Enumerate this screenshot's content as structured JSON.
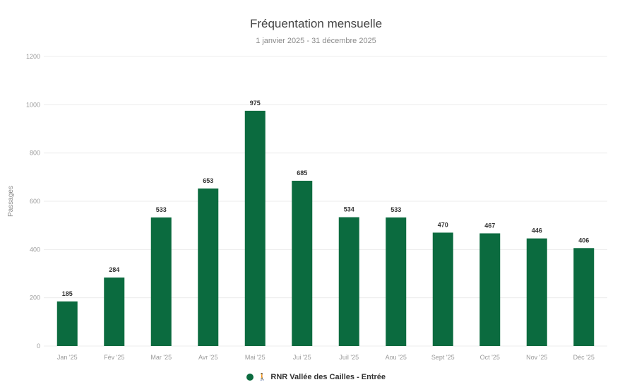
{
  "chart_data": {
    "type": "bar",
    "title": "Fréquentation mensuelle",
    "subtitle": "1 janvier 2025 - 31 décembre 2025",
    "ylabel": "Passages",
    "xlabel": "",
    "ylim": [
      0,
      1200
    ],
    "yticks": [
      "0",
      "200",
      "400",
      "600",
      "800",
      "1000",
      "1200"
    ],
    "categories": [
      "Jan '25",
      "Fév '25",
      "Mar '25",
      "Avr '25",
      "Mai '25",
      "Jui '25",
      "Juil '25",
      "Aou '25",
      "Sept '25",
      "Oct '25",
      "Nov '25",
      "Déc '25"
    ],
    "series": [
      {
        "name": "RNR Vallée des Cailles - Entrée",
        "values": [
          185,
          284,
          533,
          653,
          975,
          685,
          534,
          533,
          470,
          467,
          446,
          406
        ],
        "color": "#0b6b3f"
      }
    ],
    "grid": true,
    "legend": "bottom"
  },
  "legend": {
    "icon": "walker-icon",
    "icon_glyph": "🚶",
    "label": "RNR Vallée des Cailles - Entrée"
  }
}
